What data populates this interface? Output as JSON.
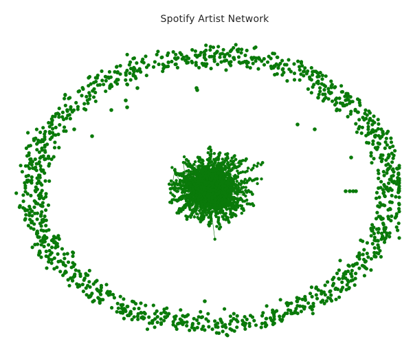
{
  "figure": {
    "title": "Spotify Artist Network"
  },
  "network": {
    "node_color": "#0a7a0a",
    "edge_color": "#0a6a0a",
    "layout": "spring",
    "structure": "dense central cluster surrounded by a ring of isolated nodes"
  }
}
